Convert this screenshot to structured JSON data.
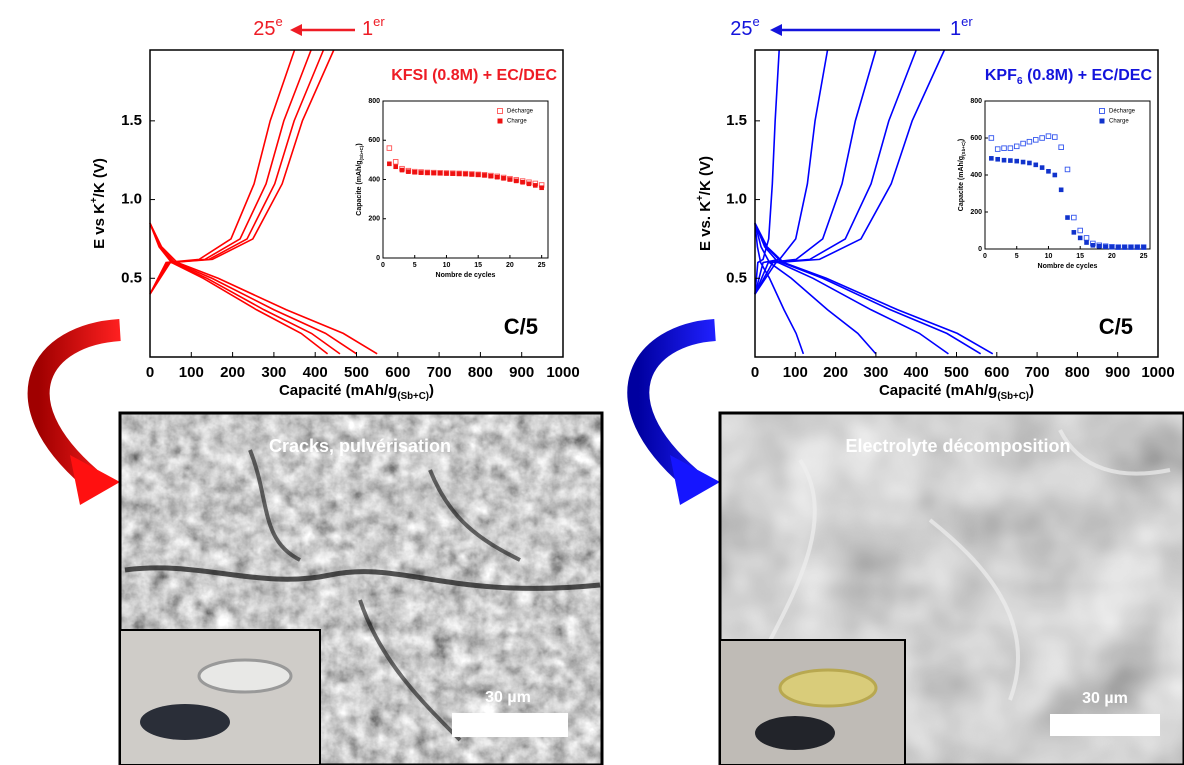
{
  "chart_data": [
    {
      "type": "line",
      "color": "#ee1c25",
      "title": "KFSI (0.8M) + EC/DEC",
      "rate": "C/5",
      "cycle_labels": {
        "last": [
          "25",
          "e"
        ],
        "first": [
          "1",
          "er"
        ]
      },
      "xlabel": [
        "Capacité (mAh/g",
        "(Sb+C)",
        ")"
      ],
      "ylabel": [
        "E vs K",
        "+",
        "/K (V)"
      ],
      "xlim": [
        0,
        1000
      ],
      "xticks": [
        0,
        100,
        200,
        300,
        400,
        500,
        600,
        700,
        800,
        900,
        1000
      ],
      "ylim": [
        0,
        1.95
      ],
      "yticks": [
        0.5,
        {
          "value": 1,
          "label": "1.0"
        },
        1.5
      ],
      "series": [
        {
          "color": "#ff0000",
          "x": [
            0,
            28,
            66,
            165,
            330,
            468,
            550
          ],
          "values": [
            0.85,
            0.7,
            0.6,
            0.5,
            0.3,
            0.15,
            0.02
          ]
        },
        {
          "color": "#ff0000",
          "x": [
            0,
            25,
            60,
            150,
            300,
            425,
            500
          ],
          "values": [
            0.85,
            0.7,
            0.6,
            0.5,
            0.3,
            0.15,
            0.02
          ]
        },
        {
          "color": "#ff0000",
          "x": [
            0,
            23,
            55,
            138,
            276,
            391,
            460
          ],
          "values": [
            0.85,
            0.7,
            0.6,
            0.5,
            0.3,
            0.15,
            0.02
          ]
        },
        {
          "color": "#ff0000",
          "x": [
            0,
            22,
            52,
            129,
            258,
            366,
            430
          ],
          "values": [
            0.85,
            0.7,
            0.6,
            0.5,
            0.3,
            0.15,
            0.02
          ]
        },
        {
          "color": "#ff0000",
          "x": [
            0,
            49,
            151,
            249,
            320,
            369,
            445
          ],
          "values": [
            0.4,
            0.6,
            0.62,
            0.75,
            1.1,
            1.5,
            1.95
          ]
        },
        {
          "color": "#ff0000",
          "x": [
            0,
            46,
            143,
            235,
            302,
            349,
            420
          ],
          "values": [
            0.4,
            0.6,
            0.62,
            0.75,
            1.1,
            1.5,
            1.95
          ]
        },
        {
          "color": "#ff0000",
          "x": [
            0,
            43,
            133,
            218,
            281,
            324,
            390
          ],
          "values": [
            0.4,
            0.6,
            0.62,
            0.75,
            1.1,
            1.5,
            1.95
          ]
        },
        {
          "color": "#ff0000",
          "x": [
            0,
            39,
            119,
            196,
            252,
            291,
            350
          ],
          "values": [
            0.4,
            0.6,
            0.62,
            0.75,
            1.1,
            1.5,
            1.95
          ]
        }
      ],
      "inset": {
        "type": "scatter",
        "xlabel": "Nombre de cycles",
        "ylabel": [
          "Capacite (mAh/g",
          "(Sb+C)",
          ")"
        ],
        "xlim": [
          0,
          26
        ],
        "xticks": [
          0,
          5,
          10,
          15,
          20,
          25
        ],
        "ylim": [
          0,
          800
        ],
        "yticks": [
          0,
          200,
          400,
          600,
          800
        ],
        "x": [
          1,
          2,
          3,
          4,
          5,
          6,
          7,
          8,
          9,
          10,
          11,
          12,
          13,
          14,
          15,
          16,
          17,
          18,
          19,
          20,
          21,
          22,
          23,
          24,
          25
        ],
        "series": [
          {
            "name": "Décharge",
            "color": "#ff5555",
            "marker": "open",
            "values": [
              560,
              490,
              455,
              445,
              440,
              438,
              436,
              435,
              434,
              433,
              432,
              431,
              430,
              428,
              426,
              424,
              420,
              416,
              410,
              404,
              398,
              392,
              386,
              380,
              372
            ]
          },
          {
            "name": "Charge",
            "color": "#ee1111",
            "marker": "filled",
            "values": [
              480,
              465,
              448,
              440,
              437,
              435,
              434,
              433,
              432,
              431,
              430,
              429,
              428,
              426,
              424,
              421,
              417,
              412,
              406,
              400,
              393,
              386,
              378,
              370,
              358
            ]
          }
        ]
      }
    },
    {
      "type": "line",
      "color": "#1414dc",
      "title": [
        "KPF",
        "6",
        " (0.8M) + EC/DEC"
      ],
      "rate": "C/5",
      "cycle_labels": {
        "last": [
          "25",
          "e"
        ],
        "first": [
          "1",
          "er"
        ]
      },
      "xlabel": [
        "Capacité (mAh/g",
        "(Sb+C)",
        ")"
      ],
      "ylabel": [
        "E vs. K",
        "+",
        "/K (V)"
      ],
      "xlim": [
        0,
        1000
      ],
      "xticks": [
        0,
        100,
        200,
        300,
        400,
        500,
        600,
        700,
        800,
        900,
        1000
      ],
      "ylim": [
        0,
        1.95
      ],
      "yticks": [
        0.5,
        {
          "value": 1,
          "label": "1.0"
        },
        1.5
      ],
      "series": [
        {
          "color": "#0000ff",
          "x": [
            0,
            30,
            71,
            177,
            354,
            502,
            590
          ],
          "values": [
            0.85,
            0.7,
            0.6,
            0.5,
            0.3,
            0.15,
            0.02
          ]
        },
        {
          "color": "#0000ff",
          "x": [
            0,
            28,
            67,
            168,
            336,
            476,
            560
          ],
          "values": [
            0.85,
            0.7,
            0.6,
            0.5,
            0.3,
            0.15,
            0.02
          ]
        },
        {
          "color": "#0000ff",
          "x": [
            0,
            24,
            58,
            144,
            288,
            408,
            480
          ],
          "values": [
            0.85,
            0.7,
            0.6,
            0.5,
            0.3,
            0.15,
            0.02
          ]
        },
        {
          "color": "#0000ff",
          "x": [
            0,
            15,
            36,
            90,
            180,
            255,
            300
          ],
          "values": [
            0.85,
            0.7,
            0.6,
            0.5,
            0.3,
            0.15,
            0.02
          ]
        },
        {
          "color": "#0000ff",
          "x": [
            0,
            6,
            14,
            36,
            72,
            102,
            120
          ],
          "values": [
            0.85,
            0.7,
            0.6,
            0.5,
            0.3,
            0.15,
            0.02
          ]
        },
        {
          "color": "#0000ff",
          "x": [
            0,
            52,
            160,
            263,
            338,
            390,
            470
          ],
          "values": [
            0.4,
            0.6,
            0.62,
            0.75,
            1.1,
            1.5,
            1.95
          ]
        },
        {
          "color": "#0000ff",
          "x": [
            0,
            44,
            136,
            224,
            288,
            332,
            400
          ],
          "values": [
            0.4,
            0.6,
            0.62,
            0.75,
            1.1,
            1.5,
            1.95
          ]
        },
        {
          "color": "#0000ff",
          "x": [
            0,
            33,
            102,
            168,
            216,
            249,
            300
          ],
          "values": [
            0.4,
            0.6,
            0.62,
            0.75,
            1.1,
            1.5,
            1.95
          ]
        },
        {
          "color": "#0000ff",
          "x": [
            0,
            20,
            61,
            101,
            130,
            149,
            180
          ],
          "values": [
            0.4,
            0.6,
            0.62,
            0.75,
            1.1,
            1.5,
            1.95
          ]
        },
        {
          "color": "#0000ff",
          "x": [
            0,
            7,
            20,
            34,
            43,
            50,
            60
          ],
          "values": [
            0.4,
            0.6,
            0.62,
            0.75,
            1.1,
            1.5,
            1.95
          ]
        }
      ],
      "inset": {
        "type": "scatter",
        "xlabel": "Nombre de cycles",
        "ylabel": [
          "Capacite (mAh/g",
          "(Sb+C)",
          ")"
        ],
        "xlim": [
          0,
          26
        ],
        "xticks": [
          0,
          5,
          10,
          15,
          20,
          25
        ],
        "ylim": [
          0,
          800
        ],
        "yticks": [
          0,
          200,
          400,
          600,
          800
        ],
        "x": [
          1,
          2,
          3,
          4,
          5,
          6,
          7,
          8,
          9,
          10,
          11,
          12,
          13,
          14,
          15,
          16,
          17,
          18,
          19,
          20,
          21,
          22,
          23,
          24,
          25
        ],
        "series": [
          {
            "name": "Décharge",
            "color": "#3355ee",
            "marker": "open",
            "values": [
              600,
              540,
              545,
              545,
              555,
              570,
              580,
              590,
              600,
              610,
              605,
              550,
              430,
              170,
              100,
              60,
              30,
              20,
              15,
              12,
              10,
              10,
              10,
              10,
              10
            ]
          },
          {
            "name": "Charge",
            "color": "#1133cc",
            "marker": "filled",
            "values": [
              490,
              485,
              480,
              478,
              475,
              470,
              465,
              455,
              440,
              420,
              400,
              320,
              170,
              90,
              60,
              35,
              20,
              15,
              12,
              10,
              10,
              10,
              10,
              10,
              10
            ]
          }
        ]
      }
    }
  ],
  "micrographs": [
    {
      "caption": "Cracks, pulvérisation",
      "scale_bar": "30 µm"
    },
    {
      "caption": "Electrolyte décomposition",
      "scale_bar": "30 µm"
    }
  ]
}
